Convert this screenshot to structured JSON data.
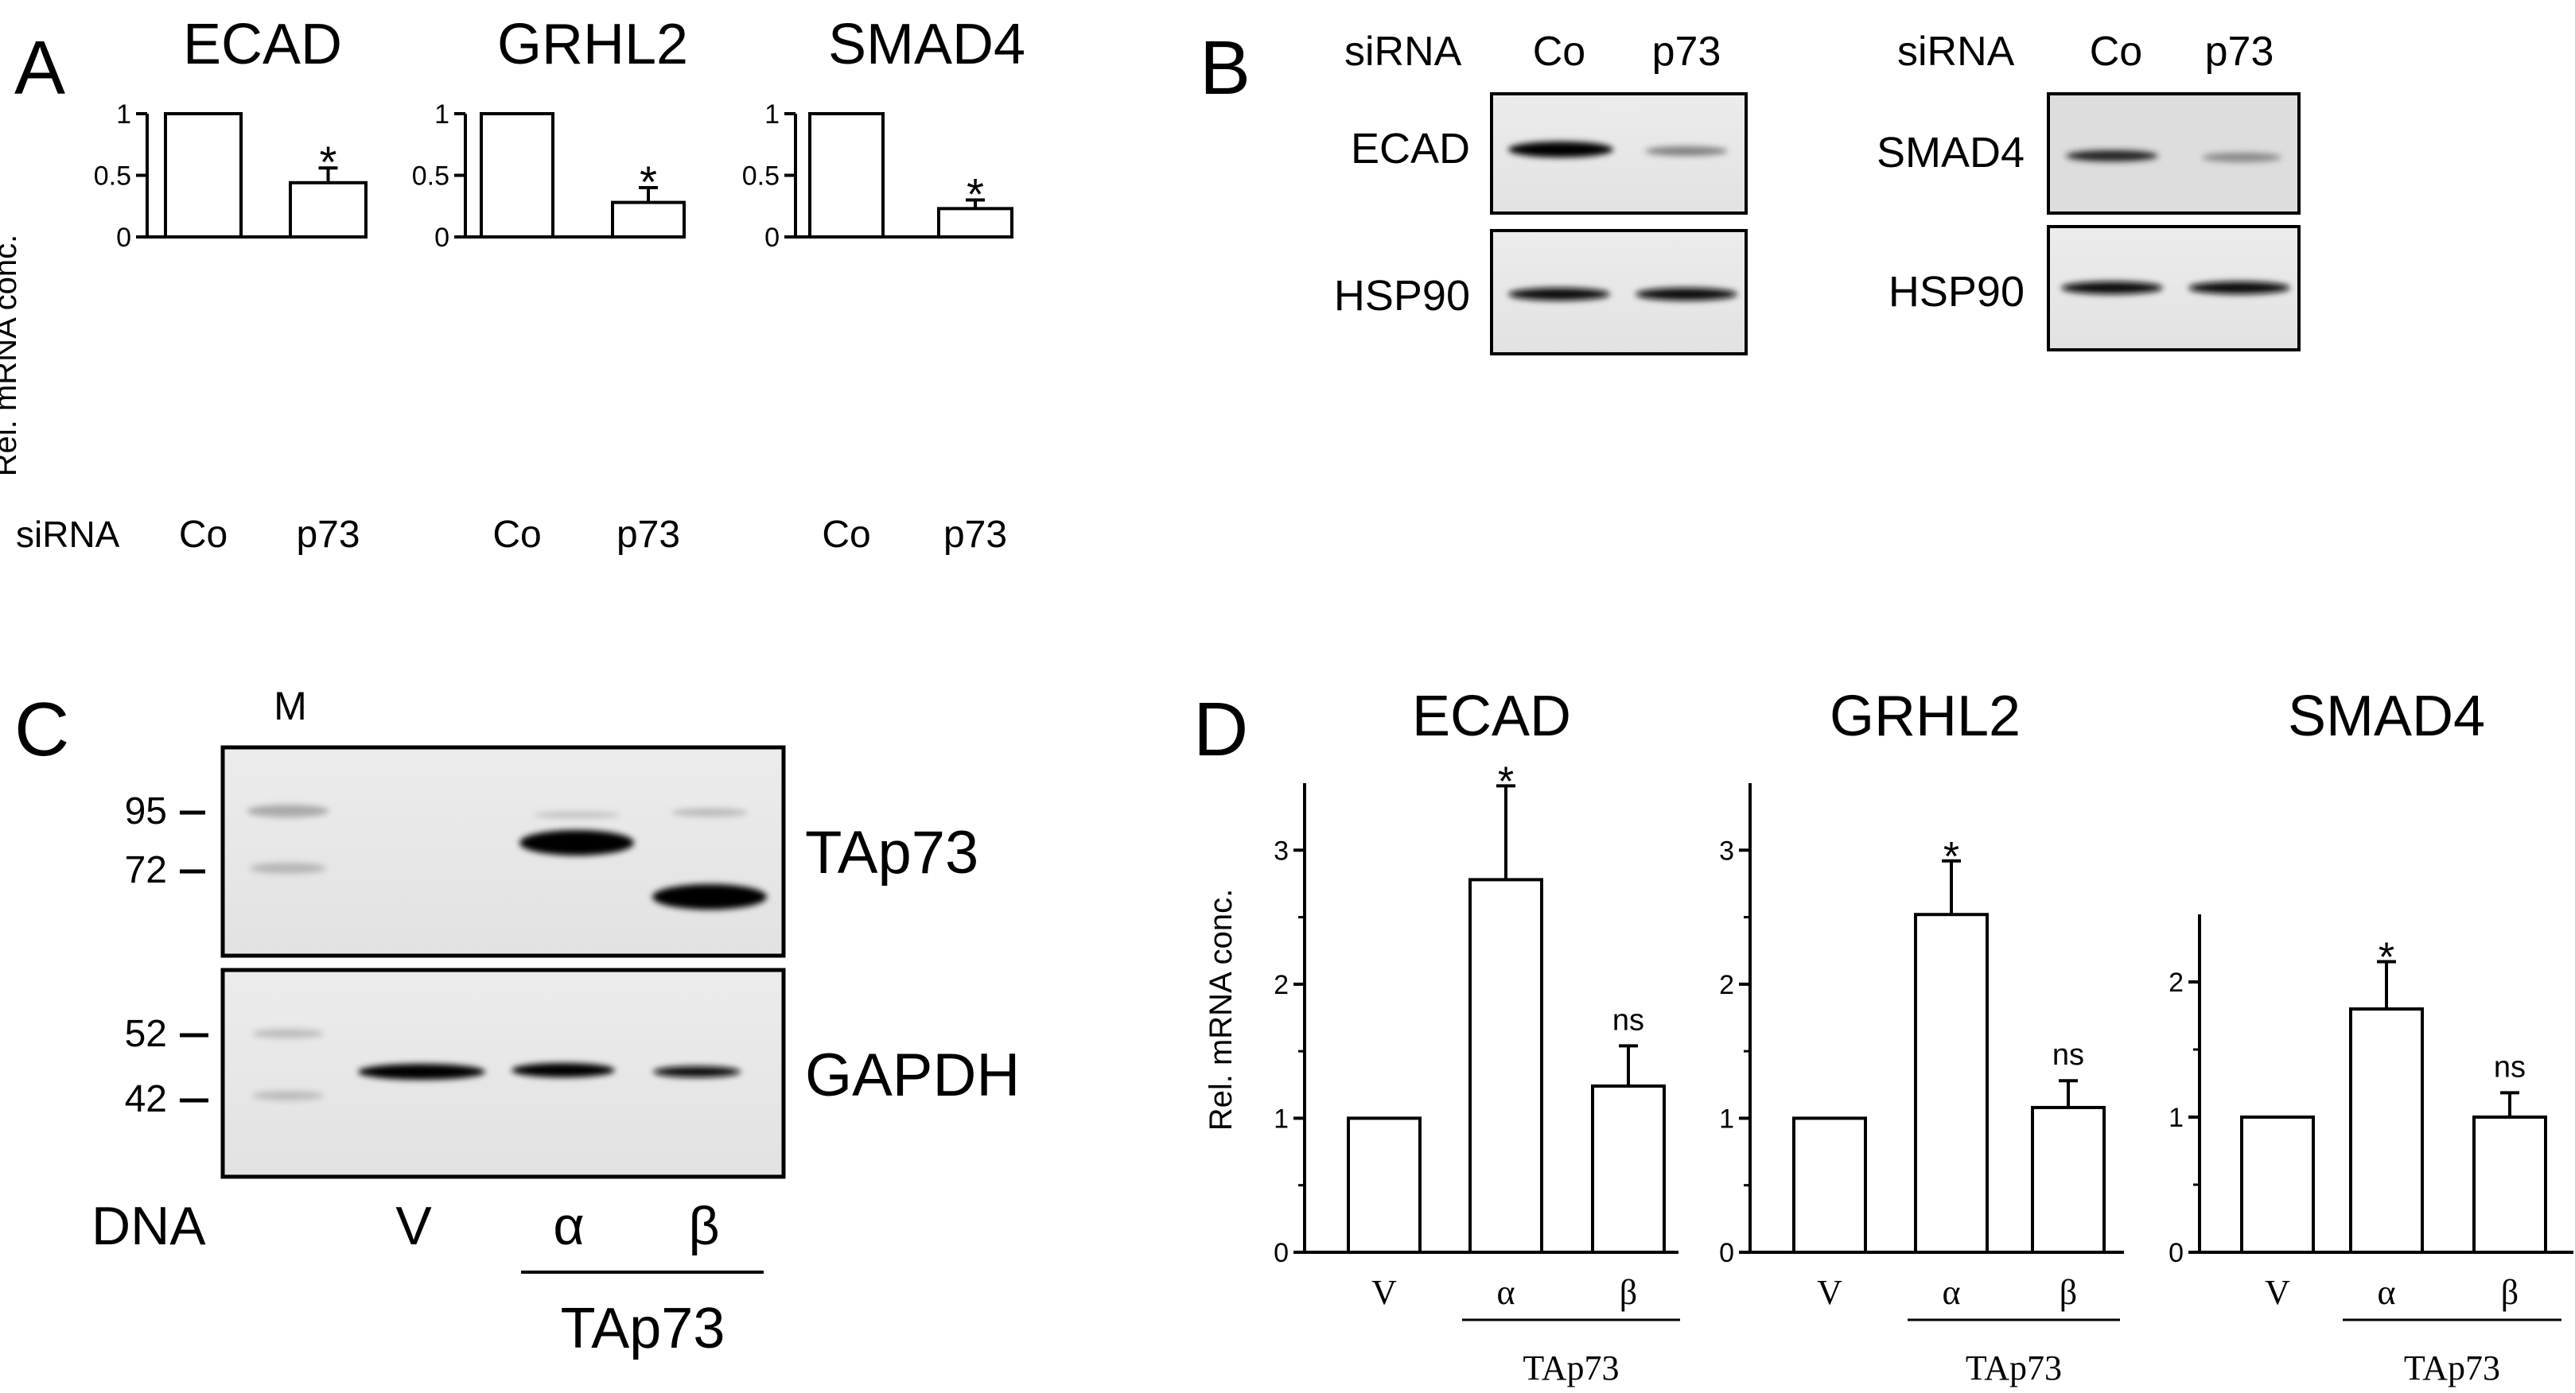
{
  "panels": {
    "A": {
      "letter": "A",
      "row_label": "siRNA",
      "ylabel": "Rel. mRNA conc."
    },
    "B": {
      "letter": "B",
      "blots": [
        {
          "header_label": "siRNA",
          "lanes": [
            "Co",
            "p73"
          ],
          "rows": [
            {
              "label": "ECAD",
              "band_intensity": [
                1.0,
                0.35
              ]
            },
            {
              "label": "HSP90",
              "band_intensity": [
                0.9,
                0.9
              ]
            }
          ]
        },
        {
          "header_label": "siRNA",
          "lanes": [
            "Co",
            "p73"
          ],
          "rows": [
            {
              "label": "SMAD4",
              "band_intensity": [
                0.85,
                0.4
              ]
            },
            {
              "label": "HSP90",
              "band_intensity": [
                0.9,
                0.9
              ]
            }
          ]
        }
      ]
    },
    "C": {
      "letter": "C",
      "marker_label": "M",
      "top_blot_label": "TAp73",
      "bottom_blot_label": "GAPDH",
      "markers_top": [
        "95",
        "72"
      ],
      "markers_bottom": [
        "52",
        "42"
      ],
      "row_label": "DNA",
      "lanes": [
        "V",
        "α",
        "β"
      ],
      "group_label": "TAp73"
    },
    "D": {
      "letter": "D",
      "ylabel": "Rel. mRNA conc.",
      "group_label": "TAp73"
    }
  },
  "chart_data": [
    {
      "type": "bar",
      "panel": "A",
      "title": "ECAD",
      "categories": [
        "Co",
        "p73"
      ],
      "values": [
        1,
        0.44
      ],
      "errors": [
        0,
        0.12
      ],
      "significance": [
        "",
        "*"
      ],
      "ylim": [
        0,
        1
      ],
      "yticks": [
        "0",
        "0.5",
        "1"
      ],
      "ylabel": "Rel. mRNA conc."
    },
    {
      "type": "bar",
      "panel": "A",
      "title": "GRHL2",
      "categories": [
        "Co",
        "p73"
      ],
      "values": [
        1,
        0.28
      ],
      "errors": [
        0,
        0.12
      ],
      "significance": [
        "",
        "*"
      ],
      "ylim": [
        0,
        1
      ],
      "yticks": [
        "0",
        "0.5",
        "1"
      ]
    },
    {
      "type": "bar",
      "panel": "A",
      "title": "SMAD4",
      "categories": [
        "Co",
        "p73"
      ],
      "values": [
        1,
        0.23
      ],
      "errors": [
        0,
        0.07
      ],
      "significance": [
        "",
        "*"
      ],
      "ylim": [
        0,
        1
      ],
      "yticks": [
        "0",
        "0.5",
        "1"
      ]
    },
    {
      "type": "bar",
      "panel": "D",
      "title": "ECAD",
      "categories": [
        "V",
        "α",
        "β"
      ],
      "values": [
        1,
        2.78,
        1.24
      ],
      "errors": [
        0,
        0.7,
        0.3
      ],
      "significance": [
        "",
        "*",
        "ns"
      ],
      "ylim": [
        0,
        3.5
      ],
      "yticks": [
        "0",
        "1",
        "2",
        "3"
      ],
      "ylabel": "Rel. mRNA conc."
    },
    {
      "type": "bar",
      "panel": "D",
      "title": "GRHL2",
      "categories": [
        "V",
        "α",
        "β"
      ],
      "values": [
        1,
        2.52,
        1.08
      ],
      "errors": [
        0,
        0.4,
        0.2
      ],
      "significance": [
        "",
        "*",
        "ns"
      ],
      "ylim": [
        0,
        3.5
      ],
      "yticks": [
        "0",
        "1",
        "2",
        "3"
      ]
    },
    {
      "type": "bar",
      "panel": "D",
      "title": "SMAD4",
      "categories": [
        "V",
        "α",
        "β"
      ],
      "values": [
        1,
        1.8,
        1.0
      ],
      "errors": [
        0,
        0.35,
        0.18
      ],
      "significance": [
        "",
        "*",
        "ns"
      ],
      "ylim": [
        0,
        2.5
      ],
      "yticks": [
        "0",
        "1",
        "2"
      ]
    }
  ]
}
